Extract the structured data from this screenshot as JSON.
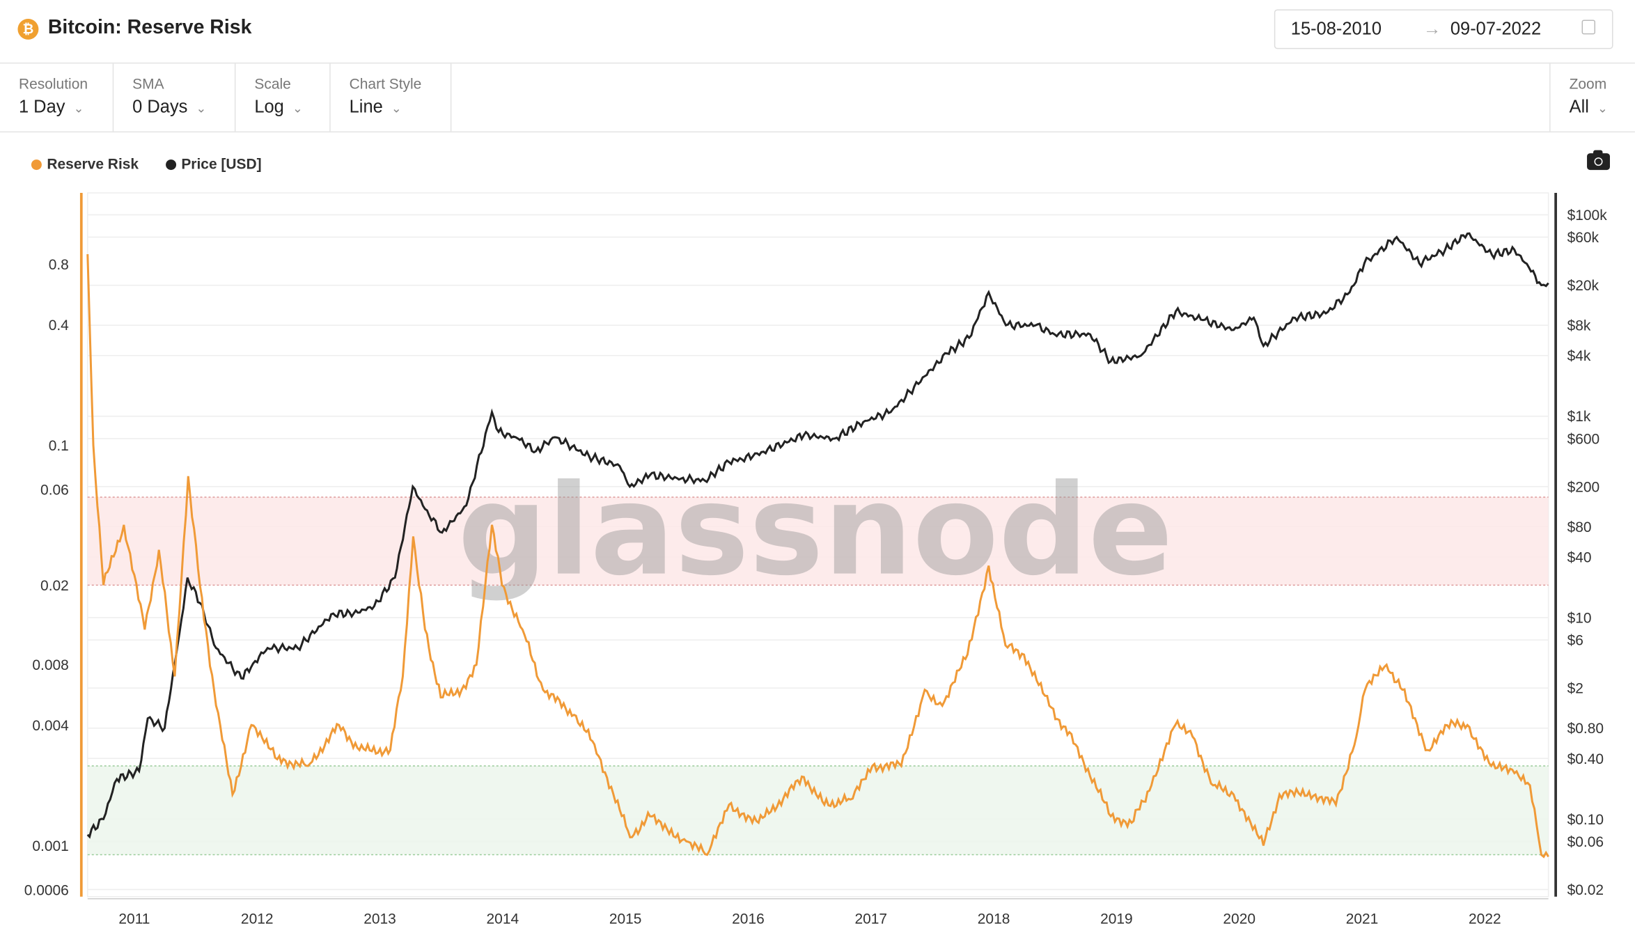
{
  "header": {
    "title": "Bitcoin: Reserve Risk",
    "coin_icon": "bitcoin-icon",
    "date_from": "15-08-2010",
    "date_arrow": "→",
    "date_to": "09-07-2022",
    "calendar_icon": "calendar-icon"
  },
  "controls": [
    {
      "label": "Resolution",
      "value": "1 Day"
    },
    {
      "label": "SMA",
      "value": "0 Days"
    },
    {
      "label": "Scale",
      "value": "Log"
    },
    {
      "label": "Chart Style",
      "value": "Line"
    }
  ],
  "zoom": {
    "label": "Zoom",
    "value": "All"
  },
  "chevron": "⌄",
  "watermark": "glassnode",
  "colors": {
    "reserve_risk": "#f09a37",
    "price": "#222222",
    "red_band": "#fde8e8",
    "green_band": "#ecf6ec"
  },
  "chart_data": {
    "type": "line",
    "x_range": [
      "2010-08-15",
      "2022-07-09"
    ],
    "x_ticks": [
      "2011",
      "2012",
      "2013",
      "2014",
      "2015",
      "2016",
      "2017",
      "2018",
      "2019",
      "2020",
      "2021",
      "2022"
    ],
    "y_left": {
      "scale": "log",
      "range": [
        0.0005,
        1.5
      ],
      "ticks": [
        0.8,
        0.4,
        0.1,
        0.06,
        0.02,
        0.008,
        0.004,
        0.001,
        0.0006
      ],
      "tick_labels": [
        "0.8",
        "0.4",
        "0.1",
        "0.06",
        "0.02",
        "0.008",
        "0.004",
        "0.001",
        "0.0006"
      ]
    },
    "y_right": {
      "scale": "log",
      "range": [
        0.018,
        180000
      ],
      "ticks": [
        100000,
        60000,
        20000,
        8000,
        4000,
        1000,
        600,
        200,
        80,
        40,
        10,
        6,
        2,
        0.8,
        0.4,
        0.1,
        0.06,
        0.02
      ],
      "tick_labels": [
        "$100k",
        "$60k",
        "$20k",
        "$8k",
        "$4k",
        "$1k",
        "$600",
        "$200",
        "$80",
        "$40",
        "$10",
        "$6",
        "$2",
        "$0.80",
        "$0.40",
        "$0.10",
        "$0.06",
        "$0.02"
      ]
    },
    "bands": [
      {
        "type": "red",
        "from": 0.02,
        "to": 0.055
      },
      {
        "type": "green",
        "from": 0.0009,
        "to": 0.0025
      }
    ],
    "legend": "top-left",
    "series": [
      {
        "name": "Reserve Risk",
        "axis": "left",
        "points": [
          [
            "2010-08-15",
            0.9
          ],
          [
            "2010-09-01",
            0.1
          ],
          [
            "2010-10-01",
            0.02
          ],
          [
            "2010-12-01",
            0.04
          ],
          [
            "2011-02-01",
            0.012
          ],
          [
            "2011-03-15",
            0.03
          ],
          [
            "2011-05-01",
            0.007
          ],
          [
            "2011-06-10",
            0.07
          ],
          [
            "2011-07-15",
            0.02
          ],
          [
            "2011-09-01",
            0.005
          ],
          [
            "2011-10-20",
            0.0018
          ],
          [
            "2011-12-15",
            0.004
          ],
          [
            "2012-03-01",
            0.0027
          ],
          [
            "2012-06-01",
            0.0025
          ],
          [
            "2012-09-01",
            0.004
          ],
          [
            "2012-11-01",
            0.003
          ],
          [
            "2013-02-01",
            0.003
          ],
          [
            "2013-03-10",
            0.007
          ],
          [
            "2013-04-10",
            0.035
          ],
          [
            "2013-05-15",
            0.012
          ],
          [
            "2013-07-01",
            0.0055
          ],
          [
            "2013-09-01",
            0.006
          ],
          [
            "2013-10-15",
            0.008
          ],
          [
            "2013-11-30",
            0.04
          ],
          [
            "2013-12-30",
            0.02
          ],
          [
            "2014-03-01",
            0.012
          ],
          [
            "2014-05-01",
            0.006
          ],
          [
            "2014-08-01",
            0.0045
          ],
          [
            "2014-10-01",
            0.0032
          ],
          [
            "2015-01-15",
            0.0011
          ],
          [
            "2015-03-15",
            0.0014
          ],
          [
            "2015-07-01",
            0.00105
          ],
          [
            "2015-09-01",
            0.0009
          ],
          [
            "2015-11-05",
            0.0016
          ],
          [
            "2016-02-01",
            0.0013
          ],
          [
            "2016-06-15",
            0.0022
          ],
          [
            "2016-08-15",
            0.0016
          ],
          [
            "2016-11-01",
            0.0017
          ],
          [
            "2017-01-05",
            0.0025
          ],
          [
            "2017-04-01",
            0.0025
          ],
          [
            "2017-06-10",
            0.006
          ],
          [
            "2017-08-01",
            0.005
          ],
          [
            "2017-10-15",
            0.009
          ],
          [
            "2017-12-17",
            0.025
          ],
          [
            "2018-02-05",
            0.01
          ],
          [
            "2018-04-01",
            0.009
          ],
          [
            "2018-06-15",
            0.005
          ],
          [
            "2018-09-01",
            0.0032
          ],
          [
            "2018-12-15",
            0.0014
          ],
          [
            "2019-02-15",
            0.0013
          ],
          [
            "2019-04-15",
            0.002
          ],
          [
            "2019-06-25",
            0.004
          ],
          [
            "2019-08-15",
            0.0035
          ],
          [
            "2019-10-15",
            0.002
          ],
          [
            "2019-12-15",
            0.0018
          ],
          [
            "2020-03-13",
            0.001
          ],
          [
            "2020-04-30",
            0.0018
          ],
          [
            "2020-08-15",
            0.0018
          ],
          [
            "2020-10-15",
            0.0016
          ],
          [
            "2020-12-15",
            0.0035
          ],
          [
            "2021-01-10",
            0.006
          ],
          [
            "2021-03-15",
            0.008
          ],
          [
            "2021-05-01",
            0.006
          ],
          [
            "2021-07-15",
            0.003
          ],
          [
            "2021-09-05",
            0.004
          ],
          [
            "2021-11-10",
            0.004
          ],
          [
            "2022-01-20",
            0.0025
          ],
          [
            "2022-03-30",
            0.0023
          ],
          [
            "2022-05-15",
            0.002
          ],
          [
            "2022-06-18",
            0.0009
          ],
          [
            "2022-07-09",
            0.00088
          ]
        ]
      },
      {
        "name": "Price [USD]",
        "axis": "right",
        "points": [
          [
            "2010-08-15",
            0.07
          ],
          [
            "2010-10-01",
            0.1
          ],
          [
            "2010-11-10",
            0.25
          ],
          [
            "2011-01-15",
            0.3
          ],
          [
            "2011-02-10",
            1
          ],
          [
            "2011-04-01",
            0.8
          ],
          [
            "2011-05-15",
            7
          ],
          [
            "2011-06-08",
            25
          ],
          [
            "2011-07-15",
            14
          ],
          [
            "2011-09-01",
            5
          ],
          [
            "2011-11-15",
            2.5
          ],
          [
            "2011-12-20",
            3.5
          ],
          [
            "2012-02-01",
            5
          ],
          [
            "2012-05-01",
            5
          ],
          [
            "2012-08-15",
            11
          ],
          [
            "2012-10-15",
            11
          ],
          [
            "2012-12-15",
            13
          ],
          [
            "2013-02-15",
            25
          ],
          [
            "2013-04-09",
            200
          ],
          [
            "2013-05-15",
            120
          ],
          [
            "2013-07-05",
            70
          ],
          [
            "2013-09-15",
            130
          ],
          [
            "2013-11-30",
            1100
          ],
          [
            "2013-12-20",
            700
          ],
          [
            "2014-02-15",
            600
          ],
          [
            "2014-04-10",
            450
          ],
          [
            "2014-06-05",
            620
          ],
          [
            "2014-09-15",
            400
          ],
          [
            "2014-12-15",
            320
          ],
          [
            "2015-01-14",
            200
          ],
          [
            "2015-03-15",
            260
          ],
          [
            "2015-06-15",
            240
          ],
          [
            "2015-08-25",
            230
          ],
          [
            "2015-11-05",
            350
          ],
          [
            "2016-01-15",
            400
          ],
          [
            "2016-06-15",
            650
          ],
          [
            "2016-09-15",
            600
          ],
          [
            "2016-12-15",
            900
          ],
          [
            "2017-03-01",
            1100
          ],
          [
            "2017-06-10",
            2500
          ],
          [
            "2017-08-15",
            4200
          ],
          [
            "2017-10-20",
            6000
          ],
          [
            "2017-12-17",
            17000
          ],
          [
            "2018-02-06",
            8000
          ],
          [
            "2018-05-05",
            8000
          ],
          [
            "2018-07-01",
            6500
          ],
          [
            "2018-10-15",
            6500
          ],
          [
            "2018-12-15",
            3500
          ],
          [
            "2019-03-15",
            4000
          ],
          [
            "2019-06-26",
            11000
          ],
          [
            "2019-09-15",
            9000
          ],
          [
            "2019-12-15",
            7200
          ],
          [
            "2020-02-13",
            9500
          ],
          [
            "2020-03-13",
            5000
          ],
          [
            "2020-06-15",
            9500
          ],
          [
            "2020-09-15",
            10500
          ],
          [
            "2020-11-25",
            17000
          ],
          [
            "2021-01-08",
            33000
          ],
          [
            "2021-04-14",
            60000
          ],
          [
            "2021-06-20",
            33000
          ],
          [
            "2021-09-05",
            45000
          ],
          [
            "2021-11-10",
            65000
          ],
          [
            "2022-01-22",
            40000
          ],
          [
            "2022-03-30",
            45000
          ],
          [
            "2022-05-12",
            30000
          ],
          [
            "2022-06-18",
            20000
          ],
          [
            "2022-07-09",
            21000
          ]
        ]
      }
    ]
  }
}
